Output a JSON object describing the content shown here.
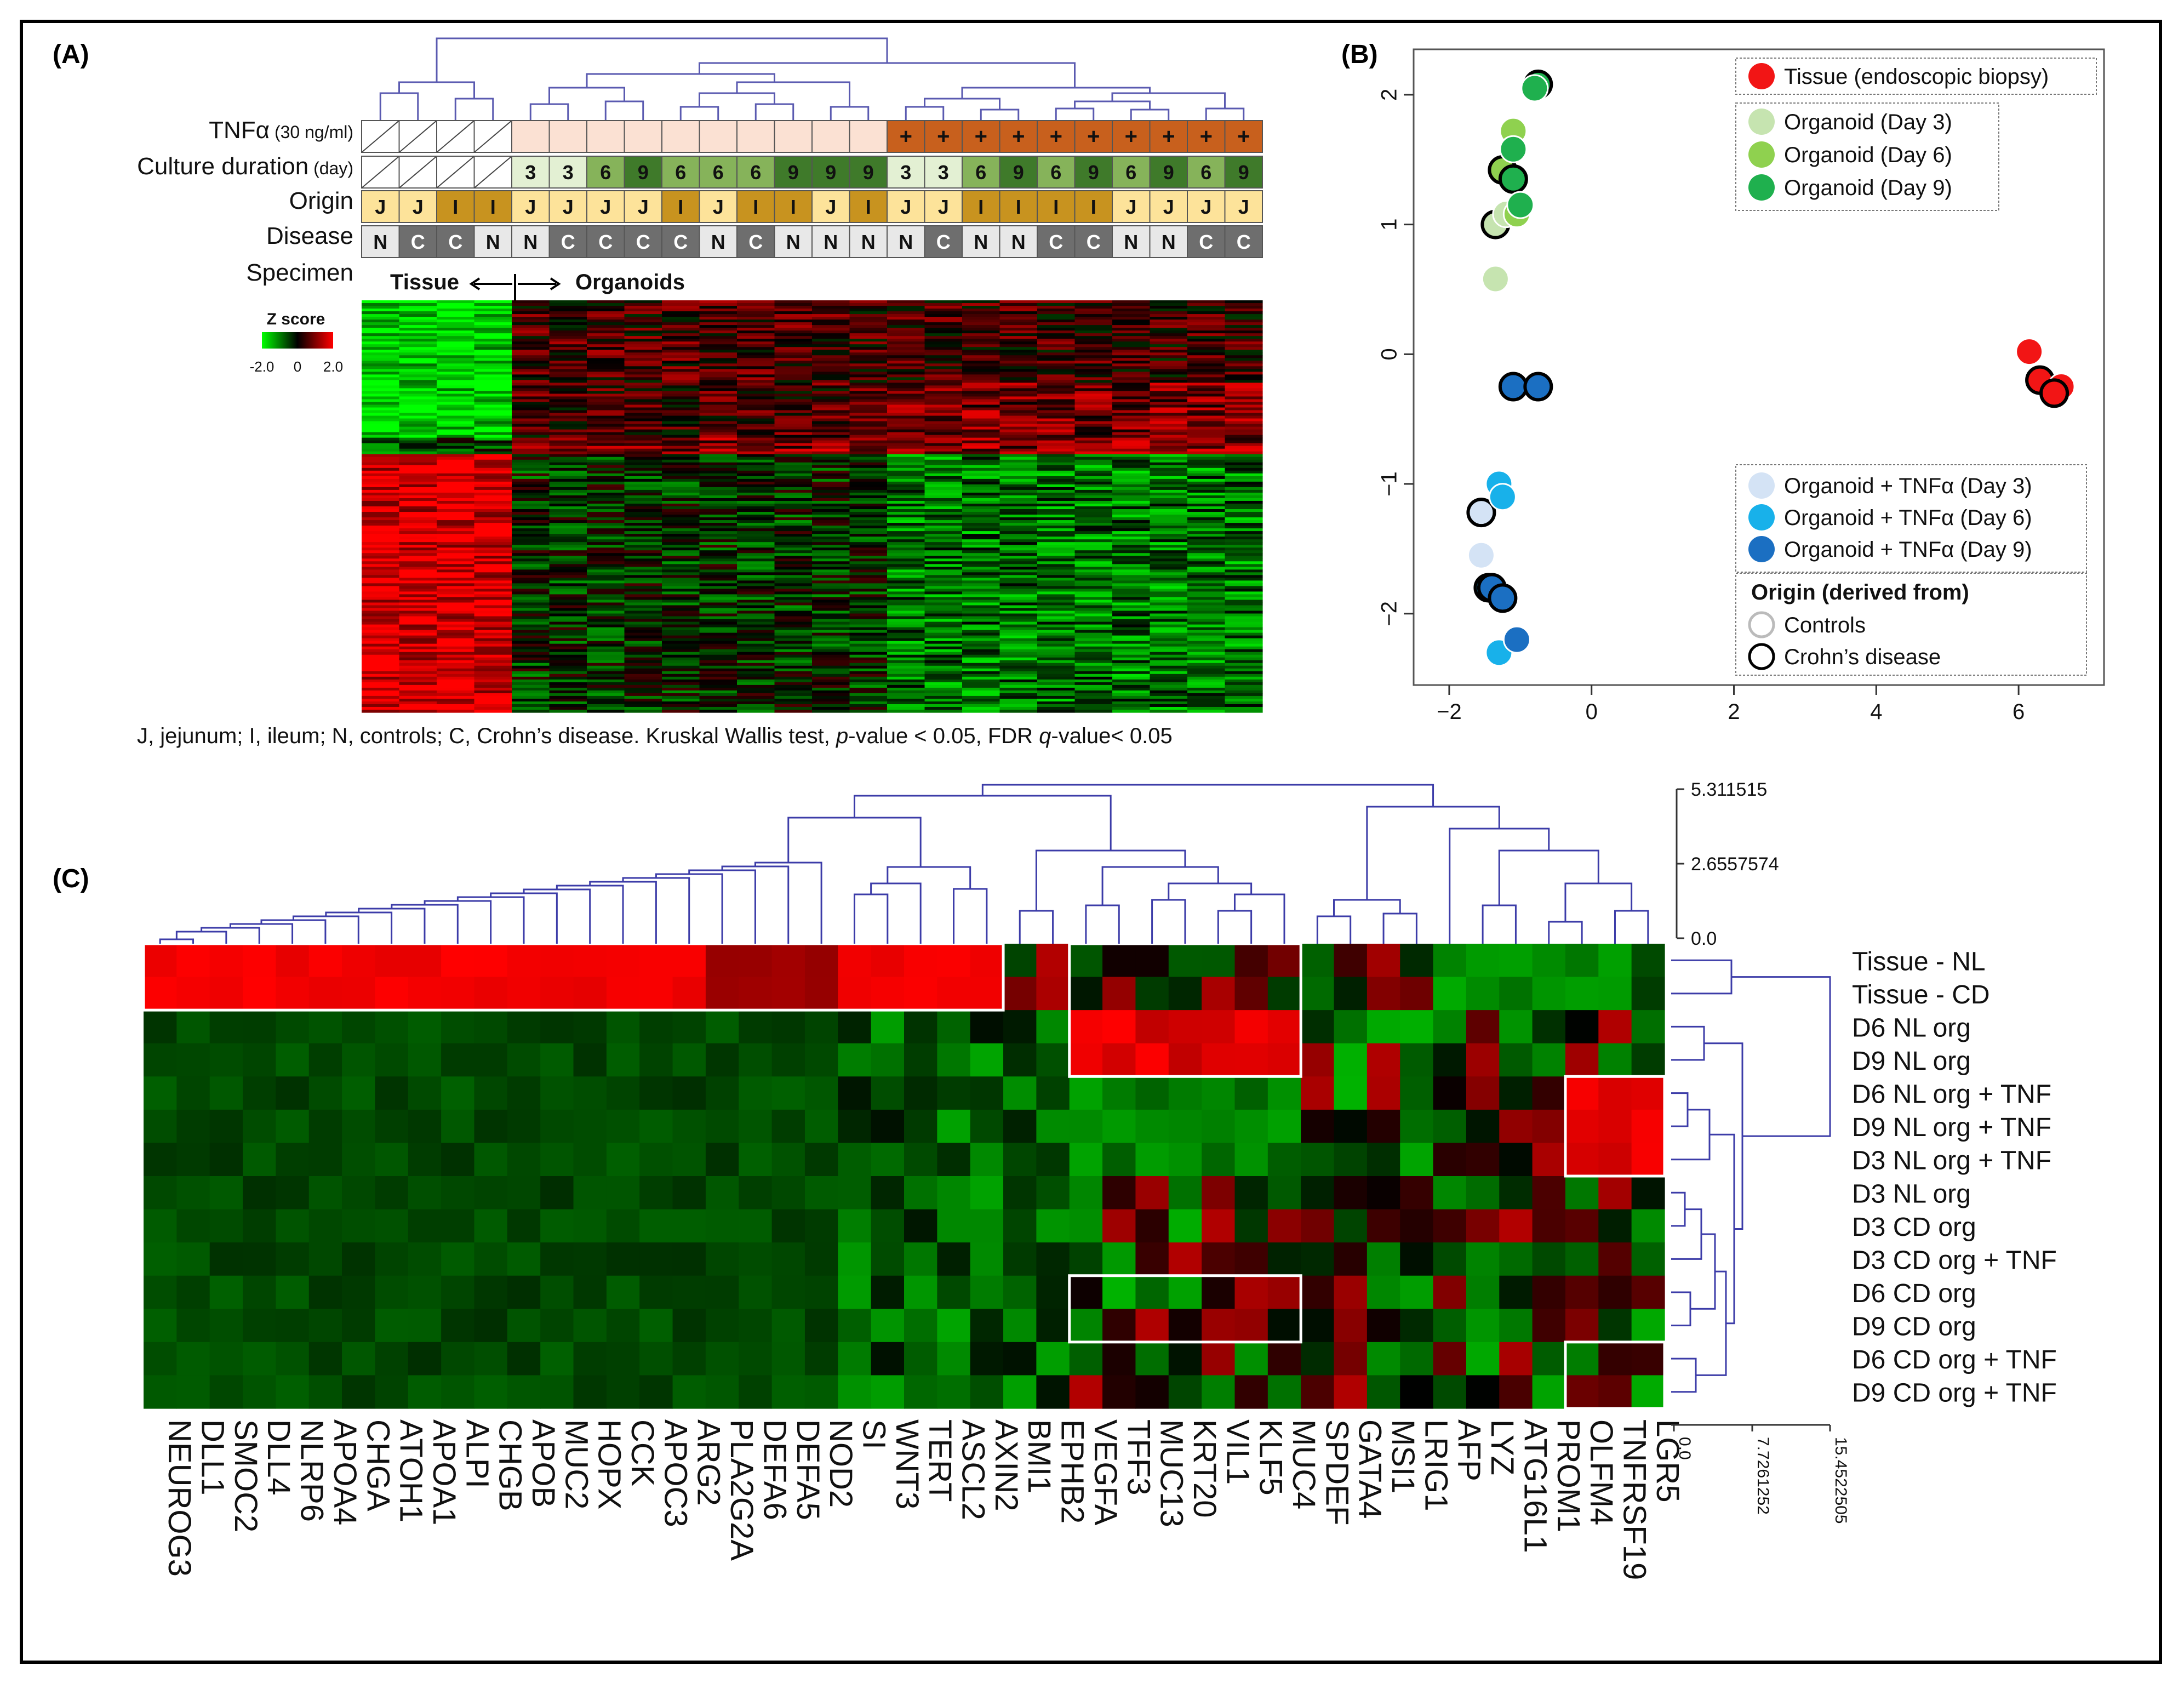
{
  "panels": {
    "a": {
      "label": "(A)",
      "rows": [
        {
          "name": "TNFα",
          "unit": "(30 ng/ml)"
        },
        {
          "name": "Culture duration",
          "unit": "(day)"
        },
        {
          "name": "Origin",
          "unit": ""
        },
        {
          "name": "Disease",
          "unit": ""
        },
        {
          "name": "Specimen",
          "unit": ""
        }
      ],
      "tnf": [
        "",
        "",
        "",
        "",
        "",
        "",
        "",
        "",
        "",
        "",
        "",
        "",
        "",
        "",
        "+",
        "+",
        "+",
        "+",
        "+",
        "+",
        "+",
        "+",
        "+",
        "+"
      ],
      "tnf_treated": [
        0,
        0,
        0,
        0,
        0,
        0,
        0,
        0,
        0,
        0,
        0,
        0,
        0,
        0,
        1,
        1,
        1,
        1,
        1,
        1,
        1,
        1,
        1,
        1
      ],
      "culture_day": [
        "",
        "",
        "",
        "",
        "3",
        "3",
        "6",
        "9",
        "6",
        "6",
        "6",
        "9",
        "9",
        "9",
        "3",
        "3",
        "6",
        "9",
        "6",
        "9",
        "6",
        "9",
        "6",
        "9"
      ],
      "origin": [
        "J",
        "J",
        "I",
        "I",
        "J",
        "J",
        "J",
        "J",
        "I",
        "J",
        "I",
        "I",
        "J",
        "I",
        "J",
        "J",
        "I",
        "I",
        "I",
        "I",
        "J",
        "J",
        "J",
        "J"
      ],
      "disease": [
        "N",
        "C",
        "C",
        "N",
        "N",
        "C",
        "C",
        "C",
        "C",
        "N",
        "C",
        "N",
        "N",
        "N",
        "N",
        "C",
        "N",
        "N",
        "C",
        "C",
        "N",
        "N",
        "C",
        "C"
      ],
      "specimen_tissue": "Tissue",
      "specimen_organoids": "Organoids",
      "zscore_title": "Z score",
      "zscore_ticks": [
        "-2.0",
        "0",
        "2.0"
      ],
      "footnote_parts": [
        "J, jejunum; I, ileum; N, controls; C, Crohn’s disease. Kruskal Wallis test, ",
        "p",
        "-value < 0.05, FDR ",
        "q",
        "-value< 0.05"
      ]
    },
    "b": {
      "label": "(B)",
      "legend_top": [
        {
          "label": "Tissue (endoscopic biopsy)",
          "color": "#f21515"
        },
        {
          "label": "Organoid (Day 3)",
          "color": "#c6e4b0"
        },
        {
          "label": "Organoid (Day 6)",
          "color": "#8fd14f"
        },
        {
          "label": "Organoid (Day 9)",
          "color": "#1fb04e"
        }
      ],
      "legend_bottom": [
        {
          "label": "Organoid + TNFα (Day 3)",
          "color": "#d4e3f5"
        },
        {
          "label": "Organoid + TNFα (Day 6)",
          "color": "#18b1ea"
        },
        {
          "label": "Organoid + TNFα (Day 9)",
          "color": "#1b6fc2"
        }
      ],
      "origin_title": "Origin (derived from)",
      "origin_items": [
        {
          "label": "Controls",
          "stroke": "#bbbbbb"
        },
        {
          "label": "Crohn’s disease",
          "stroke": "#000000"
        }
      ]
    },
    "c": {
      "label": "(C)",
      "top_scale_ticks": [
        "5.311515",
        "2.6557574",
        "0.0"
      ],
      "right_scale_ticks": [
        "0.0",
        "7.7261252",
        "15.4522505"
      ]
    }
  },
  "chart_data": [
    {
      "type": "heatmap",
      "title": "",
      "columns": 24,
      "row_groups": [
        "Tissue",
        "Organoids"
      ],
      "colorbar": {
        "label": "Z score",
        "min": -2.0,
        "max": 2.0,
        "colors": [
          "#00ff00",
          "#000000",
          "#ff0000"
        ]
      }
    },
    {
      "type": "scatter",
      "title": "",
      "xlim": [
        -2.5,
        7.2
      ],
      "ylim": [
        -2.55,
        2.35
      ],
      "xticks": [
        -2,
        0,
        2,
        4,
        6
      ],
      "yticks": [
        -2,
        -1,
        0,
        1,
        2
      ],
      "series": [
        {
          "name": "Tissue (endoscopic biopsy)",
          "color": "#f21515",
          "points": [
            [
              6.15,
              0.02,
              0
            ],
            [
              6.3,
              -0.2,
              1
            ],
            [
              6.6,
              -0.25,
              0
            ],
            [
              6.5,
              -0.3,
              1
            ]
          ]
        },
        {
          "name": "Organoid (Day 3)",
          "color": "#c6e4b0",
          "points": [
            [
              -1.35,
              0.58,
              0
            ],
            [
              -1.35,
              1.0,
              1
            ],
            [
              -1.2,
              1.08,
              0
            ]
          ]
        },
        {
          "name": "Organoid (Day 6)",
          "color": "#8fd14f",
          "points": [
            [
              -1.1,
              1.72,
              0
            ],
            [
              -1.25,
              1.42,
              1
            ],
            [
              -1.05,
              1.08,
              0
            ]
          ]
        },
        {
          "name": "Organoid (Day 9)",
          "color": "#1fb04e",
          "points": [
            [
              -0.75,
              2.08,
              1
            ],
            [
              -0.8,
              2.05,
              0
            ],
            [
              -1.1,
              1.58,
              0
            ],
            [
              -1.1,
              1.35,
              1
            ],
            [
              -1.0,
              1.15,
              0
            ]
          ]
        },
        {
          "name": "Organoid + TNFα (Day 3)",
          "color": "#d4e3f5",
          "points": [
            [
              -1.55,
              -1.22,
              1
            ],
            [
              -1.55,
              -1.55,
              0
            ]
          ]
        },
        {
          "name": "Organoid + TNFα (Day 6)",
          "color": "#18b1ea",
          "points": [
            [
              -1.3,
              -1.0,
              0
            ],
            [
              -1.3,
              -2.3,
              0
            ],
            [
              -1.45,
              -1.8,
              1
            ],
            [
              -1.25,
              -1.1,
              0
            ]
          ]
        },
        {
          "name": "Organoid + TNFα (Day 9)",
          "color": "#1b6fc2",
          "points": [
            [
              -1.1,
              -0.25,
              1
            ],
            [
              -0.75,
              -0.25,
              1
            ],
            [
              -1.4,
              -1.8,
              1
            ],
            [
              -1.25,
              -1.88,
              1
            ],
            [
              -1.05,
              -2.2,
              0
            ]
          ]
        }
      ]
    },
    {
      "type": "heatmap",
      "title": "",
      "genes": [
        "NEUROG3",
        "DLL1",
        "SMOC2",
        "DLL4",
        "NLRP6",
        "APOA4",
        "CHGA",
        "ATOH1",
        "APOA1",
        "ALPI",
        "CHGB",
        "APOB",
        "MUC2",
        "HOPX",
        "CCK",
        "APOC3",
        "ARG2",
        "PLA2G2A",
        "DEFA6",
        "DEFA5",
        "NOD2",
        "SI",
        "WNT3",
        "TERT",
        "ASCL2",
        "AXIN2",
        "BMI1",
        "EPHB2",
        "VEGFA",
        "TFF3",
        "MUC13",
        "KRT20",
        "VIL1",
        "KLF5",
        "MUC4",
        "SPDEF",
        "GATA4",
        "MSI1",
        "LRIG1",
        "AFP",
        "LYZ",
        "ATG16L1",
        "PROM1",
        "OLFM4",
        "TNFRSF19",
        "LGR5"
      ],
      "samples": [
        "Tissue - NL",
        "Tissue - CD",
        "D6 NL org",
        "D9 NL org",
        "D6 NL org + TNF",
        "D9 NL org + TNF",
        "D3 NL org + TNF",
        "D3 NL org",
        "D3 CD org",
        "D3 CD org + TNF",
        "D6 CD org",
        "D9 CD org",
        "D6 CD org + TNF",
        "D9 CD org + TNF"
      ]
    }
  ]
}
